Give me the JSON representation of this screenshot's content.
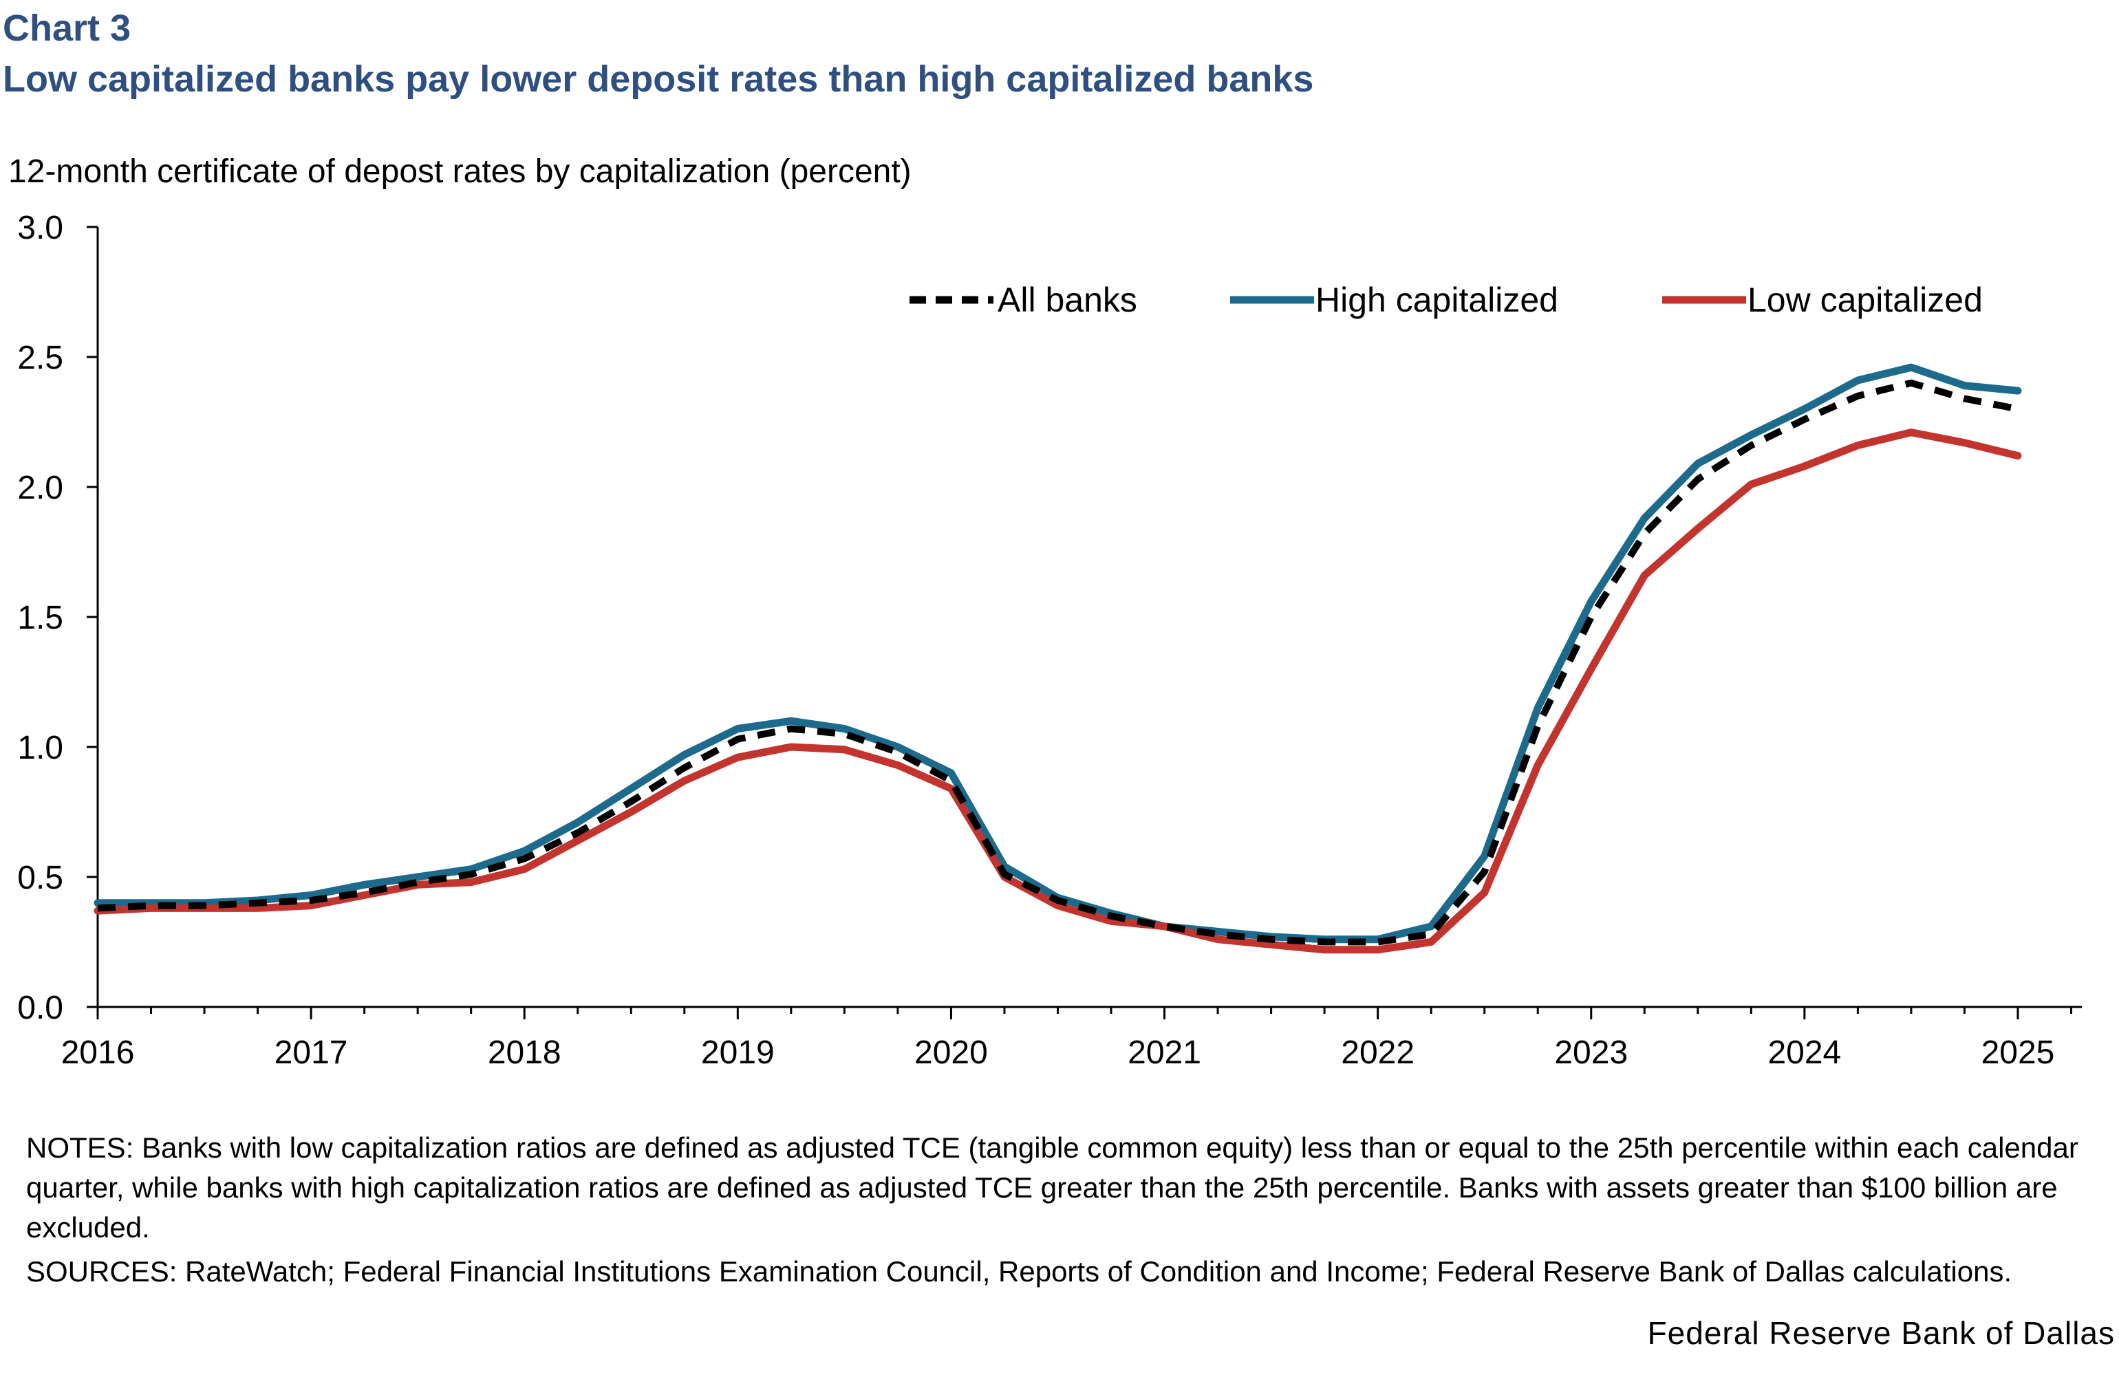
{
  "header": {
    "label": "Chart 3",
    "title": "Low capitalized banks pay lower deposit rates than high capitalized banks",
    "subtitle": "12-month certificate of depost rates by capitalization (percent)"
  },
  "chart_data": {
    "type": "line",
    "title": "Low capitalized banks pay lower deposit rates than high capitalized banks",
    "ylabel": "12-month certificate of depost rates by capitalization (percent)",
    "xlabel": "",
    "xlim": [
      2016,
      2025.3
    ],
    "ylim": [
      0,
      3.0
    ],
    "yticks": [
      "0.0",
      "0.5",
      "1.0",
      "1.5",
      "2.0",
      "2.5",
      "3.0"
    ],
    "xticks": [
      "2016",
      "2017",
      "2018",
      "2019",
      "2020",
      "2021",
      "2022",
      "2023",
      "2024",
      "2025"
    ],
    "grid": false,
    "legend_position": "top-right",
    "x": [
      2016.0,
      2016.25,
      2016.5,
      2016.75,
      2017.0,
      2017.25,
      2017.5,
      2017.75,
      2018.0,
      2018.25,
      2018.5,
      2018.75,
      2019.0,
      2019.25,
      2019.5,
      2019.75,
      2020.0,
      2020.25,
      2020.5,
      2020.75,
      2021.0,
      2021.25,
      2021.5,
      2021.75,
      2022.0,
      2022.25,
      2022.5,
      2022.75,
      2023.0,
      2023.25,
      2023.5,
      2023.75,
      2024.0,
      2024.25,
      2024.5,
      2024.75,
      2025.0
    ],
    "series": [
      {
        "name": "All banks",
        "color": "#000000",
        "style": "dashed",
        "values": [
          0.38,
          0.39,
          0.39,
          0.4,
          0.41,
          0.44,
          0.48,
          0.51,
          0.57,
          0.67,
          0.79,
          0.92,
          1.03,
          1.07,
          1.05,
          0.98,
          0.87,
          0.51,
          0.41,
          0.35,
          0.31,
          0.28,
          0.26,
          0.25,
          0.25,
          0.28,
          0.52,
          1.08,
          1.5,
          1.82,
          2.03,
          2.16,
          2.26,
          2.35,
          2.4,
          2.34,
          2.3
        ]
      },
      {
        "name": "High capitalized",
        "color": "#1d6b8c",
        "style": "solid",
        "values": [
          0.4,
          0.4,
          0.4,
          0.41,
          0.43,
          0.47,
          0.5,
          0.53,
          0.6,
          0.71,
          0.84,
          0.97,
          1.07,
          1.1,
          1.07,
          1.0,
          0.9,
          0.54,
          0.42,
          0.36,
          0.31,
          0.29,
          0.27,
          0.26,
          0.26,
          0.31,
          0.58,
          1.15,
          1.56,
          1.88,
          2.09,
          2.2,
          2.3,
          2.41,
          2.46,
          2.39,
          2.37
        ]
      },
      {
        "name": "Low capitalized",
        "color": "#c4342e",
        "style": "solid",
        "values": [
          0.37,
          0.38,
          0.38,
          0.38,
          0.39,
          0.43,
          0.47,
          0.48,
          0.53,
          0.64,
          0.75,
          0.87,
          0.96,
          1.0,
          0.99,
          0.93,
          0.84,
          0.5,
          0.39,
          0.33,
          0.31,
          0.26,
          0.24,
          0.22,
          0.22,
          0.25,
          0.44,
          0.93,
          1.3,
          1.66,
          1.84,
          2.01,
          2.08,
          2.16,
          2.21,
          2.17,
          2.12
        ]
      }
    ]
  },
  "notes": {
    "notes_text": "NOTES: Banks with low capitalization ratios are defined as adjusted TCE (tangible common equity) less than or equal to the 25th percentile within each calendar quarter, while banks with high capitalization ratios are defined as adjusted TCE greater than the 25th percentile. Banks with assets greater than $100 billion are excluded.",
    "sources_text": "SOURCES: RateWatch; Federal Financial Institutions Examination Council, Reports of Condition and Income; Federal Reserve Bank of Dallas calculations."
  },
  "footer": {
    "credit": "Federal Reserve Bank of Dallas"
  }
}
